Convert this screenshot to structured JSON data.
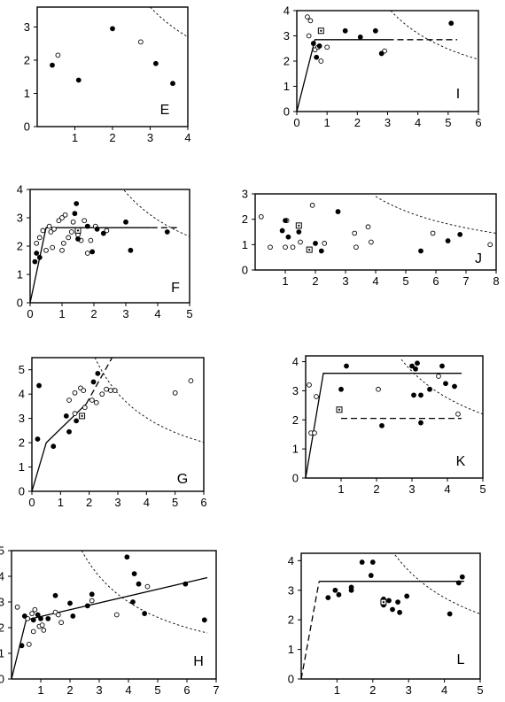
{
  "figure": {
    "description_none": ""
  },
  "chart_data": [
    {
      "type": "scatter",
      "panel_label": "E",
      "xticks": [
        "1",
        "2",
        "3",
        "4"
      ],
      "yticks": [
        "0",
        "1",
        "2",
        "3"
      ],
      "xlim": [
        0,
        4
      ],
      "ylim": [
        0,
        3.6
      ],
      "points_filled": [
        [
          0.4,
          1.85
        ],
        [
          1.1,
          1.4
        ],
        [
          2.0,
          2.95
        ],
        [
          3.15,
          1.9
        ],
        [
          3.6,
          1.3
        ]
      ],
      "points_open": [
        [
          0.55,
          2.15
        ],
        [
          2.75,
          2.55
        ]
      ],
      "points_square": [],
      "lines": [],
      "curve": {
        "a": 10.8,
        "from": 3.0,
        "to": 4.0
      }
    },
    {
      "type": "scatter",
      "panel_label": "I",
      "xticks": [
        "0",
        "1",
        "2",
        "3",
        "4",
        "5",
        "6"
      ],
      "yticks": [
        "0",
        "1",
        "2",
        "3",
        "4"
      ],
      "xlim": [
        0,
        6
      ],
      "ylim": [
        0,
        4
      ],
      "points_filled": [
        [
          0.55,
          2.7
        ],
        [
          0.75,
          2.6
        ],
        [
          0.65,
          2.15
        ],
        [
          1.6,
          3.2
        ],
        [
          2.1,
          2.95
        ],
        [
          2.6,
          3.2
        ],
        [
          2.8,
          2.3
        ],
        [
          5.1,
          3.5
        ]
      ],
      "points_open": [
        [
          0.35,
          3.75
        ],
        [
          0.45,
          3.6
        ],
        [
          0.4,
          3.0
        ],
        [
          0.6,
          2.45
        ],
        [
          0.8,
          2.0
        ],
        [
          0.7,
          2.55
        ],
        [
          1.0,
          2.55
        ],
        [
          2.9,
          2.4
        ]
      ],
      "points_square": [
        [
          0.8,
          3.2
        ]
      ],
      "lines": [
        {
          "style": "solid",
          "points": [
            [
              0,
              0
            ],
            [
              0.6,
              2.85
            ],
            [
              3.0,
              2.85
            ]
          ]
        },
        {
          "style": "dashed",
          "points": [
            [
              3.0,
              2.85
            ],
            [
              5.3,
              2.85
            ]
          ]
        }
      ],
      "curve": {
        "a": 12.4,
        "from": 3.1,
        "to": 6.0
      }
    },
    {
      "type": "scatter",
      "panel_label": "F",
      "xticks": [
        "0",
        "1",
        "2",
        "3",
        "4",
        "5"
      ],
      "yticks": [
        "0",
        "1",
        "2",
        "3",
        "4"
      ],
      "xlim": [
        0,
        5
      ],
      "ylim": [
        0,
        4
      ],
      "points_filled": [
        [
          0.15,
          1.45
        ],
        [
          0.3,
          1.6
        ],
        [
          0.2,
          1.75
        ],
        [
          1.4,
          3.15
        ],
        [
          1.45,
          3.5
        ],
        [
          1.5,
          2.25
        ],
        [
          1.8,
          2.7
        ],
        [
          1.95,
          1.8
        ],
        [
          2.1,
          2.6
        ],
        [
          2.3,
          2.45
        ],
        [
          3.0,
          2.85
        ],
        [
          3.15,
          1.85
        ],
        [
          4.3,
          2.5
        ]
      ],
      "points_open": [
        [
          0.2,
          2.1
        ],
        [
          0.3,
          2.3
        ],
        [
          0.4,
          2.55
        ],
        [
          0.5,
          1.85
        ],
        [
          0.6,
          2.7
        ],
        [
          0.65,
          2.5
        ],
        [
          0.7,
          1.95
        ],
        [
          0.75,
          2.6
        ],
        [
          0.9,
          2.9
        ],
        [
          1.0,
          1.85
        ],
        [
          1.05,
          2.1
        ],
        [
          1.0,
          3.0
        ],
        [
          1.1,
          3.1
        ],
        [
          1.2,
          2.3
        ],
        [
          1.3,
          2.5
        ],
        [
          1.35,
          2.85
        ],
        [
          1.5,
          2.4
        ],
        [
          1.6,
          2.2
        ],
        [
          1.7,
          2.9
        ],
        [
          1.8,
          1.75
        ],
        [
          1.9,
          2.2
        ],
        [
          2.05,
          2.7
        ],
        [
          2.4,
          2.55
        ]
      ],
      "points_square": [
        [
          1.5,
          2.55
        ]
      ],
      "lines": [
        {
          "style": "solid",
          "points": [
            [
              0,
              0
            ],
            [
              0.5,
              2.65
            ],
            [
              3.8,
              2.65
            ]
          ]
        },
        {
          "style": "dashed",
          "points": [
            [
              3.8,
              2.65
            ],
            [
              4.6,
              2.65
            ]
          ]
        }
      ],
      "curve": {
        "a": 11.7,
        "from": 2.95,
        "to": 5.0
      }
    },
    {
      "type": "scatter",
      "panel_label": "J",
      "xticks": [
        "1",
        "2",
        "3",
        "4",
        "5",
        "6",
        "7",
        "8"
      ],
      "yticks": [
        "0",
        "1",
        "2",
        "3"
      ],
      "xlim": [
        0,
        8
      ],
      "ylim": [
        0,
        3
      ],
      "points_filled": [
        [
          0.9,
          1.55
        ],
        [
          1.0,
          1.95
        ],
        [
          1.1,
          1.3
        ],
        [
          1.45,
          1.5
        ],
        [
          2.0,
          1.05
        ],
        [
          2.2,
          0.75
        ],
        [
          2.75,
          2.3
        ],
        [
          5.5,
          0.75
        ],
        [
          6.4,
          1.15
        ],
        [
          6.8,
          1.4
        ]
      ],
      "points_open": [
        [
          0.2,
          2.1
        ],
        [
          0.5,
          0.9
        ],
        [
          1.0,
          0.9
        ],
        [
          1.05,
          1.95
        ],
        [
          1.25,
          0.9
        ],
        [
          1.5,
          1.1
        ],
        [
          1.9,
          2.55
        ],
        [
          2.3,
          1.05
        ],
        [
          3.3,
          1.45
        ],
        [
          3.35,
          0.9
        ],
        [
          3.75,
          1.7
        ],
        [
          3.85,
          1.1
        ],
        [
          5.9,
          1.45
        ],
        [
          7.8,
          1.0
        ]
      ],
      "points_square": [
        [
          1.45,
          1.75
        ],
        [
          1.8,
          0.8
        ]
      ],
      "lines": [],
      "curve": {
        "a": 11.6,
        "from": 4.0,
        "to": 8.0
      }
    },
    {
      "type": "scatter",
      "panel_label": "G",
      "xticks": [
        "0",
        "1",
        "2",
        "3",
        "4",
        "5",
        "6"
      ],
      "yticks": [
        "0",
        "1",
        "2",
        "3",
        "4",
        "5"
      ],
      "xlim": [
        0,
        6
      ],
      "ylim": [
        0,
        5.5
      ],
      "points_filled": [
        [
          0.2,
          2.15
        ],
        [
          0.25,
          4.35
        ],
        [
          0.75,
          1.85
        ],
        [
          1.2,
          3.1
        ],
        [
          1.3,
          2.45
        ],
        [
          1.55,
          2.9
        ],
        [
          2.15,
          4.5
        ],
        [
          2.3,
          4.85
        ]
      ],
      "points_open": [
        [
          1.3,
          3.75
        ],
        [
          1.5,
          4.05
        ],
        [
          1.5,
          3.2
        ],
        [
          1.7,
          4.25
        ],
        [
          1.8,
          4.15
        ],
        [
          1.85,
          3.45
        ],
        [
          2.1,
          3.75
        ],
        [
          2.25,
          3.65
        ],
        [
          2.45,
          4.0
        ],
        [
          2.6,
          4.2
        ],
        [
          2.75,
          4.15
        ],
        [
          2.9,
          4.15
        ],
        [
          5.0,
          4.05
        ],
        [
          5.55,
          4.55
        ]
      ],
      "points_square": [
        [
          1.75,
          3.1
        ]
      ],
      "lines": [
        {
          "style": "solid",
          "points": [
            [
              0,
              0
            ],
            [
              0.5,
              2.0
            ],
            [
              1.9,
              3.6
            ]
          ]
        },
        {
          "style": "dashed",
          "points": [
            [
              1.9,
              3.6
            ],
            [
              2.8,
              5.5
            ]
          ]
        }
      ],
      "curve": {
        "a": 12.1,
        "from": 2.2,
        "to": 6.0
      }
    },
    {
      "type": "scatter",
      "panel_label": "K",
      "xticks": [
        "1",
        "2",
        "3",
        "4",
        "5"
      ],
      "yticks": [
        "0",
        "1",
        "2",
        "3",
        "4"
      ],
      "xlim": [
        0,
        5
      ],
      "ylim": [
        0,
        4.2
      ],
      "points_filled": [
        [
          1.0,
          3.05
        ],
        [
          1.15,
          3.85
        ],
        [
          2.15,
          1.8
        ],
        [
          3.0,
          3.85
        ],
        [
          3.05,
          2.85
        ],
        [
          3.15,
          3.95
        ],
        [
          3.1,
          3.75
        ],
        [
          3.25,
          1.9
        ],
        [
          3.25,
          2.85
        ],
        [
          3.5,
          3.05
        ],
        [
          3.85,
          3.85
        ],
        [
          3.95,
          3.25
        ],
        [
          4.2,
          3.15
        ]
      ],
      "points_open": [
        [
          0.1,
          3.2
        ],
        [
          0.15,
          1.55
        ],
        [
          0.25,
          1.55
        ],
        [
          0.3,
          2.8
        ],
        [
          2.05,
          3.05
        ],
        [
          3.75,
          3.5
        ],
        [
          4.3,
          2.2
        ]
      ],
      "points_square": [
        [
          0.95,
          2.35
        ]
      ],
      "lines": [
        {
          "style": "solid",
          "points": [
            [
              0,
              0
            ],
            [
              0.5,
              3.6
            ],
            [
              4.4,
              3.6
            ]
          ]
        },
        {
          "style": "dashed",
          "points": [
            [
              1.0,
              2.05
            ],
            [
              4.4,
              2.05
            ]
          ]
        }
      ],
      "curve": {
        "a": 11.0,
        "from": 2.7,
        "to": 5.0
      }
    },
    {
      "type": "scatter",
      "panel_label": "H",
      "xticks": [
        "1",
        "2",
        "3",
        "4",
        "5",
        "6",
        "7"
      ],
      "yticks": [
        "0",
        "1",
        "2",
        "3",
        "4",
        "5"
      ],
      "xlim": [
        0,
        7
      ],
      "ylim": [
        0,
        5
      ],
      "points_filled": [
        [
          0.35,
          1.3
        ],
        [
          0.45,
          2.45
        ],
        [
          0.75,
          2.3
        ],
        [
          0.9,
          2.5
        ],
        [
          1.0,
          2.35
        ],
        [
          1.25,
          2.35
        ],
        [
          1.5,
          3.25
        ],
        [
          2.0,
          2.95
        ],
        [
          2.1,
          2.45
        ],
        [
          2.6,
          2.85
        ],
        [
          2.75,
          3.3
        ],
        [
          3.95,
          4.75
        ],
        [
          4.2,
          4.1
        ],
        [
          4.15,
          3.0
        ],
        [
          4.35,
          3.7
        ],
        [
          4.55,
          2.55
        ],
        [
          5.95,
          3.7
        ],
        [
          6.6,
          2.3
        ]
      ],
      "points_open": [
        [
          0.2,
          2.8
        ],
        [
          0.55,
          2.35
        ],
        [
          0.6,
          1.35
        ],
        [
          0.7,
          2.55
        ],
        [
          0.75,
          1.85
        ],
        [
          0.8,
          2.7
        ],
        [
          0.95,
          2.05
        ],
        [
          1.05,
          2.1
        ],
        [
          1.1,
          1.9
        ],
        [
          1.5,
          2.6
        ],
        [
          1.6,
          2.5
        ],
        [
          1.7,
          2.2
        ],
        [
          2.75,
          3.05
        ],
        [
          3.6,
          2.5
        ],
        [
          4.65,
          3.6
        ]
      ],
      "points_square": [],
      "lines": [
        {
          "style": "solid",
          "points": [
            [
              0,
              0
            ],
            [
              0.5,
              2.3
            ],
            [
              6.7,
              3.95
            ]
          ]
        }
      ],
      "curve": {
        "a": 12.0,
        "from": 2.4,
        "to": 6.7
      }
    },
    {
      "type": "scatter",
      "panel_label": "L",
      "xticks": [
        "1",
        "2",
        "3",
        "4",
        "5"
      ],
      "yticks": [
        "0",
        "1",
        "2",
        "3",
        "4"
      ],
      "xlim": [
        0,
        5
      ],
      "ylim": [
        0,
        4.25
      ],
      "points_filled": [
        [
          0.75,
          2.75
        ],
        [
          0.95,
          3.0
        ],
        [
          1.05,
          2.85
        ],
        [
          1.4,
          3.1
        ],
        [
          1.4,
          3.0
        ],
        [
          1.7,
          3.95
        ],
        [
          1.95,
          3.5
        ],
        [
          2.0,
          3.95
        ],
        [
          2.3,
          2.7
        ],
        [
          2.3,
          2.5
        ],
        [
          2.45,
          2.65
        ],
        [
          2.55,
          2.35
        ],
        [
          2.7,
          2.6
        ],
        [
          2.75,
          2.25
        ],
        [
          2.95,
          2.8
        ],
        [
          4.15,
          2.2
        ],
        [
          4.4,
          3.25
        ],
        [
          4.5,
          3.45
        ]
      ],
      "points_open": [
        [
          2.3,
          2.55
        ]
      ],
      "points_square": [
        [
          2.3,
          2.6
        ]
      ],
      "lines": [
        {
          "style": "dashed",
          "points": [
            [
              0,
              0
            ],
            [
              0.5,
              3.3
            ]
          ]
        },
        {
          "style": "solid",
          "points": [
            [
              0.5,
              3.3
            ],
            [
              4.55,
              3.3
            ]
          ]
        }
      ],
      "curve": {
        "a": 11.0,
        "from": 2.55,
        "to": 5.0
      }
    }
  ]
}
